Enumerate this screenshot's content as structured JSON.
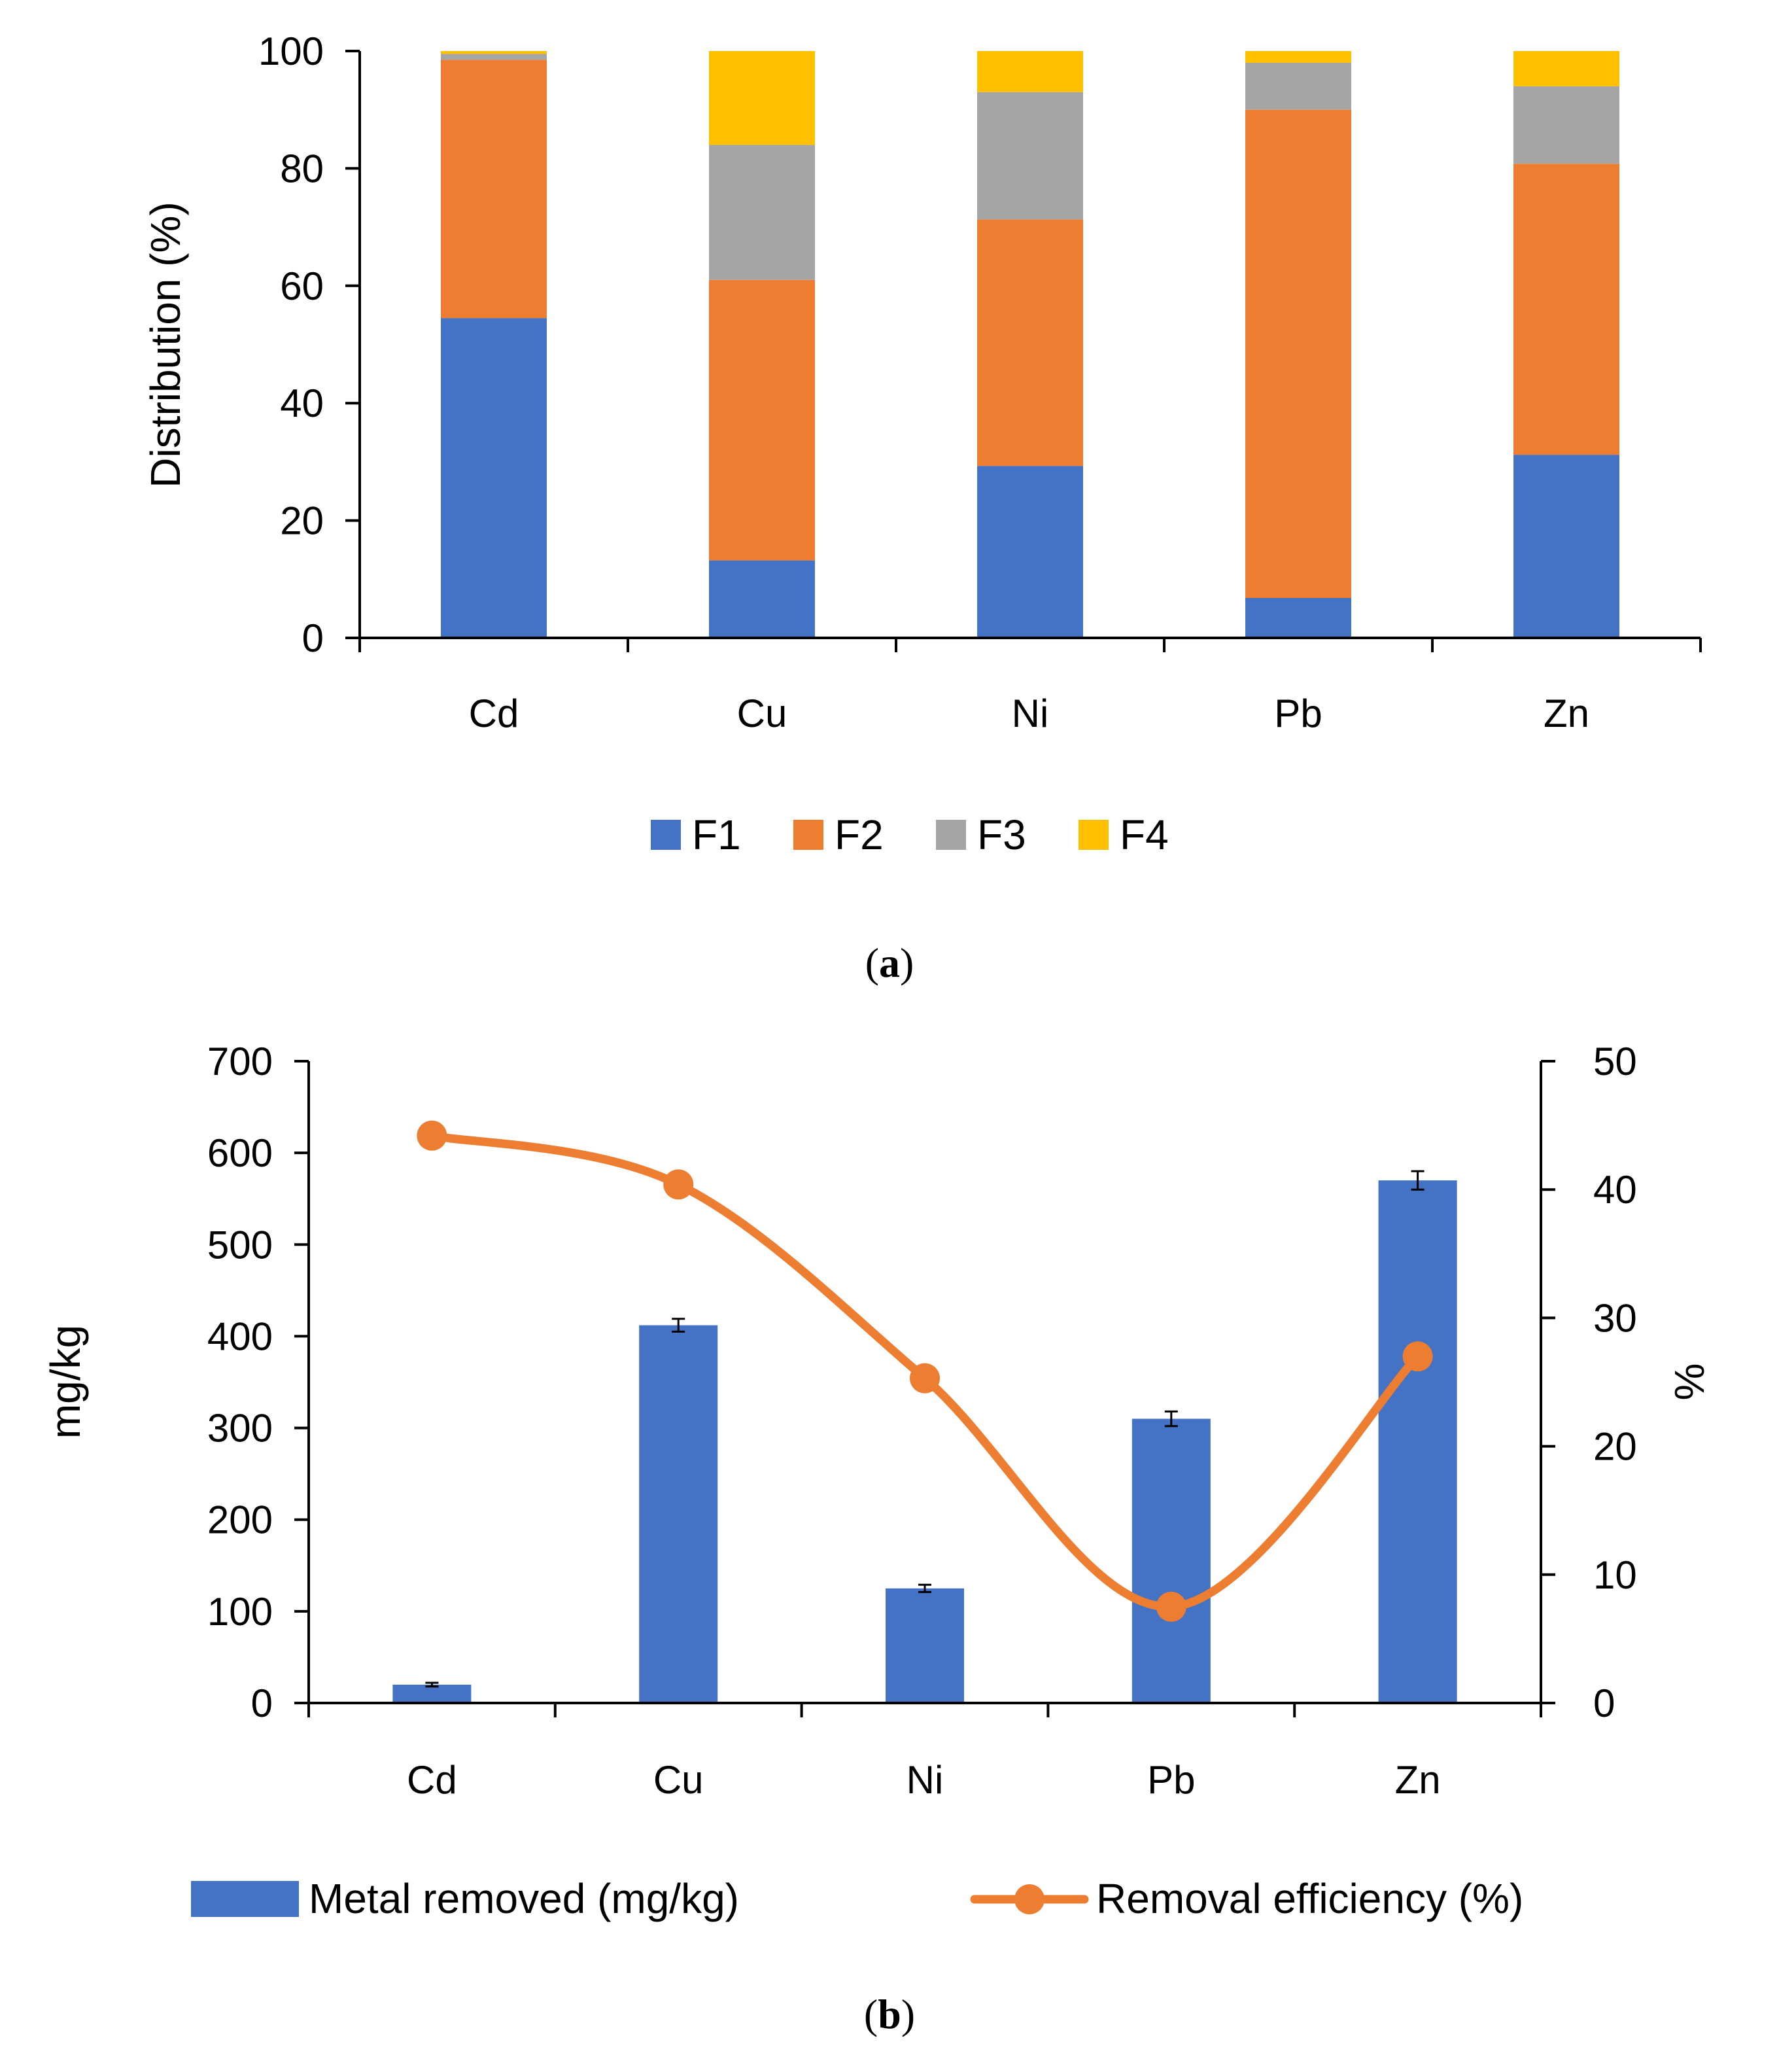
{
  "chart_data": [
    {
      "type": "bar",
      "stacked": true,
      "categories": [
        "Cd",
        "Cu",
        "Ni",
        "Pb",
        "Zn"
      ],
      "series": [
        {
          "name": "F1",
          "color": "#4472C4",
          "values": [
            54.5,
            13.2,
            29.3,
            6.8,
            31.2
          ]
        },
        {
          "name": "F2",
          "color": "#ED7D31",
          "values": [
            44.0,
            47.8,
            42.0,
            83.2,
            49.6
          ]
        },
        {
          "name": "F3",
          "color": "#A5A5A5",
          "values": [
            1.0,
            23.0,
            21.7,
            8.0,
            13.2
          ]
        },
        {
          "name": "F4",
          "color": "#FFC000",
          "values": [
            0.5,
            16.0,
            7.0,
            2.0,
            6.0
          ]
        }
      ],
      "ylabel": "Distribution (%)",
      "ylim": [
        0,
        100
      ],
      "yticks": [
        "0",
        "20",
        "40",
        "60",
        "80",
        "100"
      ],
      "grid": false,
      "legend": "bottom",
      "caption_letter": "a"
    },
    {
      "type": "bar",
      "categories": [
        "Cd",
        "Cu",
        "Ni",
        "Pb",
        "Zn"
      ],
      "series": [
        {
          "name": "Metal removed (mg/kg)",
          "type": "bar",
          "axis": "left",
          "color": "#4472C4",
          "values": [
            20,
            412,
            125,
            310,
            570
          ],
          "error": [
            2,
            7,
            4,
            8,
            10
          ]
        },
        {
          "name": "Removal efficiency (%)",
          "type": "line",
          "axis": "right",
          "color": "#ED7D31",
          "smooth": true,
          "values": [
            44.2,
            40.4,
            25.3,
            7.5,
            27.0
          ]
        }
      ],
      "ylabel": "mg/kg",
      "ylim": [
        0,
        700
      ],
      "yticks": [
        "0",
        "100",
        "200",
        "300",
        "400",
        "500",
        "600",
        "700"
      ],
      "y2label": "%",
      "y2lim": [
        0,
        50
      ],
      "y2ticks": [
        "0",
        "10",
        "20",
        "30",
        "40",
        "50"
      ],
      "grid": false,
      "legend": "bottom",
      "caption_letter": "b"
    }
  ]
}
